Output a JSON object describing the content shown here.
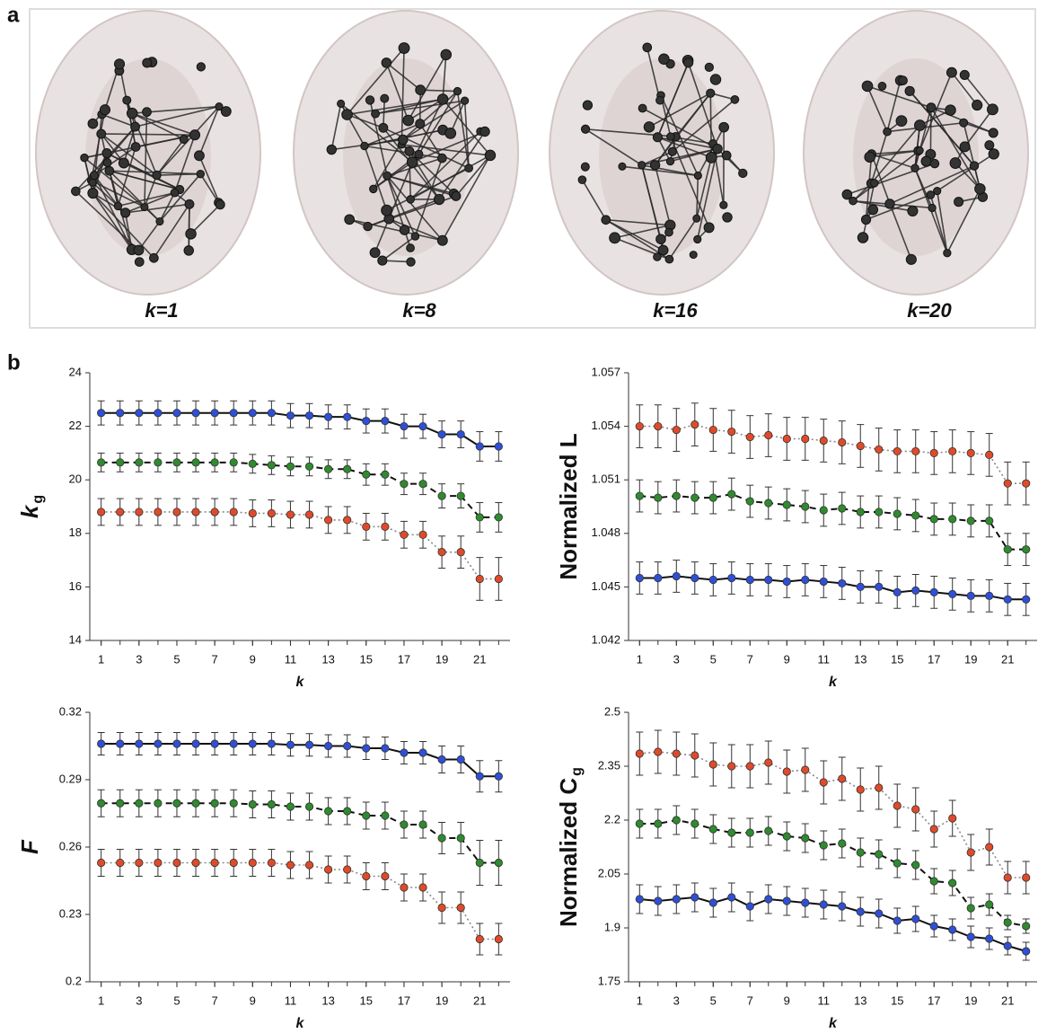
{
  "panel_a": {
    "label": "a",
    "images": [
      "k=1",
      "k=8",
      "k=16",
      "k=20"
    ]
  },
  "panel_b": {
    "label": "b"
  },
  "chart_data": [
    {
      "type": "line",
      "ylabel": "k",
      "ylabel_sub": "g",
      "xlabel": "k",
      "x": [
        1,
        2,
        3,
        4,
        5,
        6,
        7,
        8,
        9,
        10,
        11,
        12,
        13,
        14,
        15,
        16,
        17,
        18,
        19,
        20,
        21,
        22
      ],
      "xlim": [
        0.4,
        22.6
      ],
      "xticks": [
        1,
        3,
        5,
        7,
        9,
        11,
        13,
        15,
        17,
        19,
        21
      ],
      "ylim": [
        14,
        24
      ],
      "yticks": [
        14,
        16,
        18,
        20,
        22,
        24
      ],
      "series": [
        {
          "color": "#2f4fd6",
          "line_color": "#111111",
          "line_style": "solid",
          "values": [
            22.5,
            22.5,
            22.5,
            22.5,
            22.5,
            22.5,
            22.5,
            22.5,
            22.5,
            22.5,
            22.4,
            22.4,
            22.35,
            22.35,
            22.2,
            22.2,
            22.0,
            22.0,
            21.7,
            21.7,
            21.25,
            21.25
          ],
          "errors": [
            0.45,
            0.45,
            0.45,
            0.45,
            0.45,
            0.45,
            0.45,
            0.45,
            0.45,
            0.45,
            0.45,
            0.45,
            0.45,
            0.45,
            0.45,
            0.45,
            0.45,
            0.45,
            0.5,
            0.5,
            0.55,
            0.55
          ]
        },
        {
          "color": "#2e8b2e",
          "line_color": "#111111",
          "line_style": "dashed",
          "values": [
            20.65,
            20.65,
            20.65,
            20.65,
            20.65,
            20.65,
            20.65,
            20.65,
            20.6,
            20.55,
            20.5,
            20.5,
            20.4,
            20.4,
            20.2,
            20.2,
            19.85,
            19.85,
            19.4,
            19.4,
            18.6,
            18.6
          ],
          "errors": [
            0.35,
            0.35,
            0.35,
            0.35,
            0.35,
            0.35,
            0.35,
            0.35,
            0.35,
            0.35,
            0.35,
            0.35,
            0.35,
            0.35,
            0.4,
            0.4,
            0.4,
            0.4,
            0.45,
            0.45,
            0.55,
            0.55
          ]
        },
        {
          "color": "#e04a2a",
          "line_color": "#888888",
          "line_style": "dotted",
          "values": [
            18.8,
            18.8,
            18.8,
            18.8,
            18.8,
            18.8,
            18.8,
            18.8,
            18.75,
            18.75,
            18.7,
            18.7,
            18.5,
            18.5,
            18.25,
            18.25,
            17.95,
            17.95,
            17.3,
            17.3,
            16.3,
            16.3
          ],
          "errors": [
            0.5,
            0.5,
            0.5,
            0.5,
            0.5,
            0.5,
            0.5,
            0.5,
            0.5,
            0.5,
            0.5,
            0.5,
            0.5,
            0.5,
            0.5,
            0.5,
            0.5,
            0.5,
            0.6,
            0.6,
            0.8,
            0.8
          ]
        }
      ]
    },
    {
      "type": "line",
      "ylabel": "Normalized L",
      "xlabel": "k",
      "x": [
        1,
        2,
        3,
        4,
        5,
        6,
        7,
        8,
        9,
        10,
        11,
        12,
        13,
        14,
        15,
        16,
        17,
        18,
        19,
        20,
        21,
        22
      ],
      "xlim": [
        0.4,
        22.6
      ],
      "xticks": [
        1,
        3,
        5,
        7,
        9,
        11,
        13,
        15,
        17,
        19,
        21
      ],
      "ylim": [
        1.042,
        1.057
      ],
      "yticks": [
        1.042,
        1.045,
        1.048,
        1.051,
        1.054,
        1.057
      ],
      "series": [
        {
          "color": "#e04a2a",
          "line_color": "#888888",
          "line_style": "dotted",
          "values": [
            1.054,
            1.054,
            1.0538,
            1.0541,
            1.0538,
            1.0537,
            1.0534,
            1.0535,
            1.0533,
            1.0533,
            1.0532,
            1.0531,
            1.0529,
            1.0527,
            1.0526,
            1.0526,
            1.0525,
            1.0526,
            1.0525,
            1.0524,
            1.0508,
            1.0508
          ],
          "errors": [
            0.0012,
            0.0012,
            0.0012,
            0.0012,
            0.0012,
            0.0012,
            0.0012,
            0.0012,
            0.0012,
            0.0012,
            0.0012,
            0.0012,
            0.0012,
            0.0012,
            0.0012,
            0.0012,
            0.0012,
            0.0012,
            0.0012,
            0.0012,
            0.0012,
            0.0012
          ]
        },
        {
          "color": "#2e8b2e",
          "line_color": "#111111",
          "line_style": "dashed",
          "values": [
            1.0501,
            1.05,
            1.0501,
            1.05,
            1.05,
            1.0502,
            1.0498,
            1.0497,
            1.0496,
            1.0495,
            1.0493,
            1.0494,
            1.0492,
            1.0492,
            1.0491,
            1.049,
            1.0488,
            1.0488,
            1.0487,
            1.0487,
            1.0471,
            1.0471
          ],
          "errors": [
            0.0009,
            0.0009,
            0.0009,
            0.0009,
            0.0009,
            0.0009,
            0.0009,
            0.0009,
            0.0009,
            0.0009,
            0.0009,
            0.0009,
            0.0009,
            0.0009,
            0.0009,
            0.0009,
            0.0009,
            0.0009,
            0.0009,
            0.0009,
            0.0009,
            0.0009
          ]
        },
        {
          "color": "#2f4fd6",
          "line_color": "#111111",
          "line_style": "solid",
          "values": [
            1.0455,
            1.0455,
            1.0456,
            1.0455,
            1.0454,
            1.0455,
            1.0454,
            1.0454,
            1.0453,
            1.0454,
            1.0453,
            1.0452,
            1.045,
            1.045,
            1.0447,
            1.0448,
            1.0447,
            1.0446,
            1.0445,
            1.0445,
            1.0443,
            1.0443
          ],
          "errors": [
            0.0009,
            0.0009,
            0.0009,
            0.0009,
            0.0009,
            0.0009,
            0.0009,
            0.0009,
            0.0009,
            0.0009,
            0.0009,
            0.0009,
            0.0009,
            0.0009,
            0.0009,
            0.0009,
            0.0009,
            0.0009,
            0.0009,
            0.0009,
            0.0009,
            0.0009
          ]
        }
      ]
    },
    {
      "type": "line",
      "ylabel": "F",
      "xlabel": "k",
      "x": [
        1,
        2,
        3,
        4,
        5,
        6,
        7,
        8,
        9,
        10,
        11,
        12,
        13,
        14,
        15,
        16,
        17,
        18,
        19,
        20,
        21,
        22
      ],
      "xlim": [
        0.4,
        22.6
      ],
      "xticks": [
        1,
        3,
        5,
        7,
        9,
        11,
        13,
        15,
        17,
        19,
        21
      ],
      "ylim": [
        0.2,
        0.32
      ],
      "yticks": [
        0.2,
        0.23,
        0.26,
        0.29,
        0.32
      ],
      "series": [
        {
          "color": "#2f4fd6",
          "line_color": "#111111",
          "line_style": "solid",
          "values": [
            0.306,
            0.306,
            0.306,
            0.306,
            0.306,
            0.306,
            0.306,
            0.306,
            0.306,
            0.306,
            0.3055,
            0.3055,
            0.305,
            0.305,
            0.304,
            0.304,
            0.302,
            0.302,
            0.299,
            0.299,
            0.2915,
            0.2915
          ],
          "errors": [
            0.005,
            0.005,
            0.005,
            0.005,
            0.005,
            0.005,
            0.005,
            0.005,
            0.005,
            0.005,
            0.005,
            0.005,
            0.005,
            0.005,
            0.005,
            0.005,
            0.005,
            0.005,
            0.006,
            0.006,
            0.007,
            0.007
          ]
        },
        {
          "color": "#2e8b2e",
          "line_color": "#111111",
          "line_style": "dashed",
          "values": [
            0.2795,
            0.2795,
            0.2795,
            0.2795,
            0.2795,
            0.2795,
            0.2795,
            0.2795,
            0.279,
            0.279,
            0.278,
            0.278,
            0.276,
            0.276,
            0.274,
            0.274,
            0.27,
            0.27,
            0.264,
            0.264,
            0.253,
            0.253
          ],
          "errors": [
            0.006,
            0.006,
            0.006,
            0.006,
            0.006,
            0.006,
            0.006,
            0.006,
            0.006,
            0.006,
            0.006,
            0.006,
            0.006,
            0.006,
            0.006,
            0.006,
            0.006,
            0.006,
            0.007,
            0.007,
            0.01,
            0.01
          ]
        },
        {
          "color": "#e04a2a",
          "line_color": "#888888",
          "line_style": "dotted",
          "values": [
            0.253,
            0.253,
            0.253,
            0.253,
            0.253,
            0.253,
            0.253,
            0.253,
            0.253,
            0.253,
            0.252,
            0.252,
            0.25,
            0.25,
            0.247,
            0.247,
            0.242,
            0.242,
            0.233,
            0.233,
            0.219,
            0.219
          ],
          "errors": [
            0.006,
            0.006,
            0.006,
            0.006,
            0.006,
            0.006,
            0.006,
            0.006,
            0.006,
            0.006,
            0.006,
            0.006,
            0.006,
            0.006,
            0.006,
            0.006,
            0.006,
            0.006,
            0.007,
            0.007,
            0.007,
            0.007
          ]
        }
      ]
    },
    {
      "type": "line",
      "ylabel": "Normalized C",
      "ylabel_sub": "g",
      "xlabel": "k",
      "x": [
        1,
        2,
        3,
        4,
        5,
        6,
        7,
        8,
        9,
        10,
        11,
        12,
        13,
        14,
        15,
        16,
        17,
        18,
        19,
        20,
        21,
        22
      ],
      "xlim": [
        0.4,
        22.6
      ],
      "xticks": [
        1,
        3,
        5,
        7,
        9,
        11,
        13,
        15,
        17,
        19,
        21
      ],
      "ylim": [
        1.75,
        2.5
      ],
      "yticks": [
        1.75,
        1.9,
        2.05,
        2.2,
        2.35,
        2.5
      ],
      "series": [
        {
          "color": "#e04a2a",
          "line_color": "#888888",
          "line_style": "dotted",
          "values": [
            2.385,
            2.39,
            2.385,
            2.38,
            2.355,
            2.35,
            2.35,
            2.36,
            2.335,
            2.34,
            2.305,
            2.315,
            2.285,
            2.29,
            2.24,
            2.23,
            2.175,
            2.205,
            2.11,
            2.125,
            2.04,
            2.04
          ],
          "errors": [
            0.06,
            0.06,
            0.06,
            0.06,
            0.06,
            0.06,
            0.06,
            0.06,
            0.06,
            0.06,
            0.06,
            0.06,
            0.06,
            0.06,
            0.06,
            0.06,
            0.05,
            0.05,
            0.05,
            0.05,
            0.045,
            0.045
          ]
        },
        {
          "color": "#2e8b2e",
          "line_color": "#111111",
          "line_style": "dashed",
          "values": [
            2.19,
            2.19,
            2.2,
            2.19,
            2.175,
            2.165,
            2.165,
            2.17,
            2.155,
            2.15,
            2.13,
            2.135,
            2.11,
            2.105,
            2.08,
            2.075,
            2.03,
            2.025,
            1.955,
            1.965,
            1.915,
            1.905
          ],
          "errors": [
            0.04,
            0.04,
            0.04,
            0.04,
            0.04,
            0.04,
            0.04,
            0.04,
            0.04,
            0.04,
            0.04,
            0.04,
            0.04,
            0.04,
            0.04,
            0.04,
            0.035,
            0.035,
            0.03,
            0.03,
            0.02,
            0.02
          ]
        },
        {
          "color": "#2f4fd6",
          "line_color": "#111111",
          "line_style": "solid",
          "values": [
            1.98,
            1.975,
            1.98,
            1.985,
            1.97,
            1.985,
            1.96,
            1.98,
            1.975,
            1.97,
            1.965,
            1.96,
            1.945,
            1.94,
            1.92,
            1.925,
            1.905,
            1.895,
            1.875,
            1.87,
            1.85,
            1.835
          ],
          "errors": [
            0.04,
            0.04,
            0.04,
            0.04,
            0.04,
            0.04,
            0.04,
            0.04,
            0.04,
            0.04,
            0.04,
            0.04,
            0.04,
            0.04,
            0.035,
            0.035,
            0.03,
            0.03,
            0.03,
            0.03,
            0.025,
            0.025
          ]
        }
      ]
    }
  ]
}
